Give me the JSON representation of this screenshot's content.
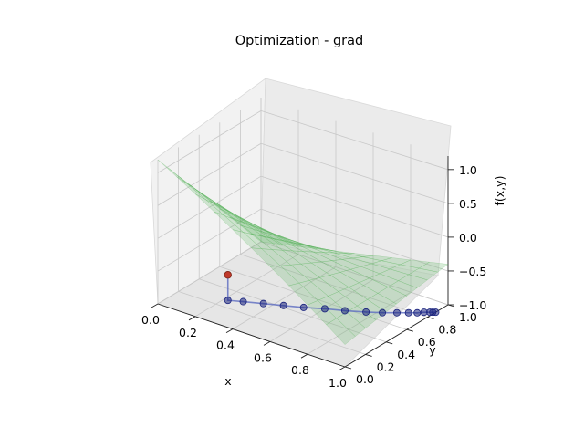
{
  "chart_data": {
    "type": "surface3d",
    "title": "Optimization - grad",
    "xlabel": "x",
    "ylabel": "y",
    "zlabel": "f(x,y)",
    "xlim": [
      0,
      1
    ],
    "ylim": [
      0,
      1
    ],
    "zlim": [
      -1,
      1.2
    ],
    "x_ticks": [
      "0.0",
      "0.2",
      "0.4",
      "0.6",
      "0.8",
      "1.0"
    ],
    "y_ticks": [
      "0.0",
      "0.2",
      "0.4",
      "0.6",
      "0.8",
      "1.0"
    ],
    "z_ticks": [
      "−1.0",
      "−0.5",
      "0.0",
      "0.5",
      "1.0"
    ],
    "grid": true,
    "surface_color": "#4caf50",
    "path_color": "#1a237e",
    "start_color": "#c0392b",
    "path": [
      {
        "x": 0.22,
        "y": 0.28,
        "z": -0.62
      },
      {
        "x": 0.22,
        "y": 0.28,
        "z": -1.0
      },
      {
        "x": 0.28,
        "y": 0.32,
        "z": -1.0
      },
      {
        "x": 0.36,
        "y": 0.37,
        "z": -1.0
      },
      {
        "x": 0.44,
        "y": 0.42,
        "z": -1.0
      },
      {
        "x": 0.52,
        "y": 0.47,
        "z": -1.0
      },
      {
        "x": 0.6,
        "y": 0.53,
        "z": -1.0
      },
      {
        "x": 0.68,
        "y": 0.58,
        "z": -1.0
      },
      {
        "x": 0.76,
        "y": 0.64,
        "z": -1.0
      },
      {
        "x": 0.82,
        "y": 0.69,
        "z": -1.0
      },
      {
        "x": 0.87,
        "y": 0.74,
        "z": -1.0
      },
      {
        "x": 0.91,
        "y": 0.78,
        "z": -1.0
      },
      {
        "x": 0.94,
        "y": 0.81,
        "z": -1.0
      },
      {
        "x": 0.96,
        "y": 0.84,
        "z": -1.0
      },
      {
        "x": 0.98,
        "y": 0.86,
        "z": -1.0
      },
      {
        "x": 0.99,
        "y": 0.87,
        "z": -1.0
      },
      {
        "x": 1.0,
        "y": 0.88,
        "z": -1.0
      }
    ]
  }
}
